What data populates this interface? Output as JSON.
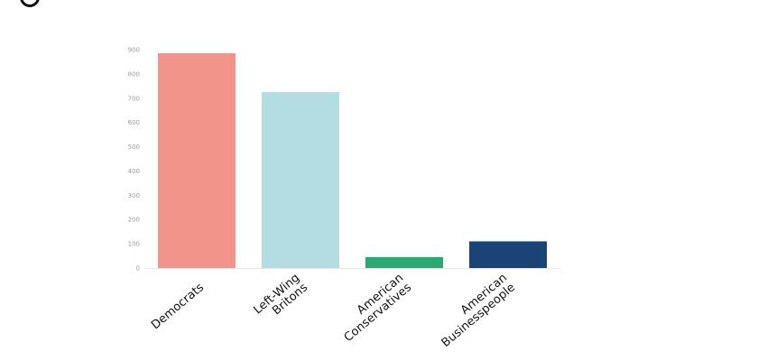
{
  "chart_data": {
    "type": "bar",
    "categories": [
      [
        "Democrats"
      ],
      [
        "Left-Wing",
        "Britons"
      ],
      [
        "American",
        "Conservatives"
      ],
      [
        "American",
        "Businesspeople"
      ]
    ],
    "values": [
      885,
      725,
      45,
      110
    ],
    "colors": [
      "#f1948a",
      "#b3dde2",
      "#2aaa72",
      "#1a4476"
    ],
    "yticks": [
      0,
      100,
      200,
      300,
      400,
      500,
      600,
      700,
      800,
      900
    ],
    "ylim": [
      0,
      900
    ],
    "grid": false
  }
}
